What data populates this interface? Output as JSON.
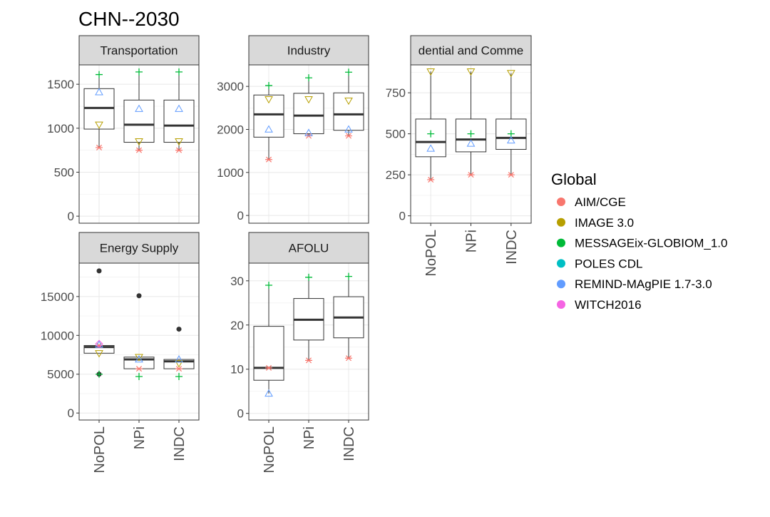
{
  "title": "CHN--2030",
  "legend": {
    "title": "Global",
    "entries": [
      {
        "label": "AIM/CGE",
        "color": "#F8766D"
      },
      {
        "label": "IMAGE 3.0",
        "color": "#B79F00"
      },
      {
        "label": "MESSAGEix-GLOBIOM_1.0",
        "color": "#00BA38"
      },
      {
        "label": "POLES CDL",
        "color": "#00BFC4"
      },
      {
        "label": "REMIND-MAgPIE 1.7-3.0",
        "color": "#619CFF"
      },
      {
        "label": "WITCH2016",
        "color": "#F564E3"
      }
    ]
  },
  "chart_data": [
    {
      "type": "box",
      "panel": "Transportation",
      "categories": [
        "NoPOL",
        "NPi",
        "INDC"
      ],
      "ylim": [
        -80,
        1720
      ],
      "yticks": [
        0,
        500,
        1000,
        1500
      ],
      "boxes": [
        {
          "category": "NoPOL",
          "lower": 780,
          "q1": 990,
          "median": 1230,
          "q3": 1450,
          "upper": 1610
        },
        {
          "category": "NPi",
          "lower": 750,
          "q1": 840,
          "median": 1040,
          "q3": 1320,
          "upper": 1640
        },
        {
          "category": "INDC",
          "lower": 750,
          "q1": 840,
          "median": 1030,
          "q3": 1320,
          "upper": 1640
        }
      ],
      "points": [
        {
          "category": "NoPOL",
          "model": "AIM/CGE",
          "value": 780
        },
        {
          "category": "NoPOL",
          "model": "IMAGE 3.0",
          "value": 1040
        },
        {
          "category": "NoPOL",
          "model": "MESSAGEix-GLOBIOM_1.0",
          "value": 1610
        },
        {
          "category": "NoPOL",
          "model": "REMIND-MAgPIE 1.7-3.0",
          "value": 1410
        },
        {
          "category": "NPi",
          "model": "AIM/CGE",
          "value": 750
        },
        {
          "category": "NPi",
          "model": "IMAGE 3.0",
          "value": 850
        },
        {
          "category": "NPi",
          "model": "MESSAGEix-GLOBIOM_1.0",
          "value": 1640
        },
        {
          "category": "NPi",
          "model": "REMIND-MAgPIE 1.7-3.0",
          "value": 1220
        },
        {
          "category": "INDC",
          "model": "AIM/CGE",
          "value": 750
        },
        {
          "category": "INDC",
          "model": "IMAGE 3.0",
          "value": 850
        },
        {
          "category": "INDC",
          "model": "MESSAGEix-GLOBIOM_1.0",
          "value": 1640
        },
        {
          "category": "INDC",
          "model": "REMIND-MAgPIE 1.7-3.0",
          "value": 1220
        }
      ]
    },
    {
      "type": "box",
      "panel": "Industry",
      "categories": [
        "NoPOL",
        "NPi",
        "INDC"
      ],
      "ylim": [
        -180,
        3500
      ],
      "yticks": [
        0,
        1000,
        2000,
        3000
      ],
      "boxes": [
        {
          "category": "NoPOL",
          "lower": 1300,
          "q1": 1820,
          "median": 2350,
          "q3": 2800,
          "upper": 3020
        },
        {
          "category": "NPi",
          "lower": 1850,
          "q1": 1900,
          "median": 2320,
          "q3": 2840,
          "upper": 3200
        },
        {
          "category": "INDC",
          "lower": 1850,
          "q1": 1980,
          "median": 2350,
          "q3": 2850,
          "upper": 3330
        }
      ],
      "points": [
        {
          "category": "NoPOL",
          "model": "AIM/CGE",
          "value": 1300
        },
        {
          "category": "NoPOL",
          "model": "IMAGE 3.0",
          "value": 2700
        },
        {
          "category": "NoPOL",
          "model": "MESSAGEix-GLOBIOM_1.0",
          "value": 3020
        },
        {
          "category": "NoPOL",
          "model": "REMIND-MAgPIE 1.7-3.0",
          "value": 2000
        },
        {
          "category": "NPi",
          "model": "AIM/CGE",
          "value": 1850
        },
        {
          "category": "NPi",
          "model": "IMAGE 3.0",
          "value": 2700
        },
        {
          "category": "NPi",
          "model": "MESSAGEix-GLOBIOM_1.0",
          "value": 3200
        },
        {
          "category": "NPi",
          "model": "REMIND-MAgPIE 1.7-3.0",
          "value": 1920
        },
        {
          "category": "INDC",
          "model": "AIM/CGE",
          "value": 1850
        },
        {
          "category": "INDC",
          "model": "IMAGE 3.0",
          "value": 2670
        },
        {
          "category": "INDC",
          "model": "MESSAGEix-GLOBIOM_1.0",
          "value": 3330
        },
        {
          "category": "INDC",
          "model": "REMIND-MAgPIE 1.7-3.0",
          "value": 2000
        }
      ]
    },
    {
      "type": "box",
      "panel": "dential and Comme",
      "categories": [
        "NoPOL",
        "NPi",
        "INDC"
      ],
      "ylim": [
        -45,
        920
      ],
      "yticks": [
        0,
        250,
        500,
        750
      ],
      "boxes": [
        {
          "category": "NoPOL",
          "lower": 220,
          "q1": 360,
          "median": 450,
          "q3": 590,
          "upper": 880
        },
        {
          "category": "NPi",
          "lower": 250,
          "q1": 390,
          "median": 465,
          "q3": 590,
          "upper": 880
        },
        {
          "category": "INDC",
          "lower": 250,
          "q1": 405,
          "median": 475,
          "q3": 590,
          "upper": 870
        }
      ],
      "points": [
        {
          "category": "NoPOL",
          "model": "AIM/CGE",
          "value": 220
        },
        {
          "category": "NoPOL",
          "model": "IMAGE 3.0",
          "value": 880
        },
        {
          "category": "NoPOL",
          "model": "MESSAGEix-GLOBIOM_1.0",
          "value": 500
        },
        {
          "category": "NoPOL",
          "model": "REMIND-MAgPIE 1.7-3.0",
          "value": 410
        },
        {
          "category": "NPi",
          "model": "AIM/CGE",
          "value": 250
        },
        {
          "category": "NPi",
          "model": "IMAGE 3.0",
          "value": 880
        },
        {
          "category": "NPi",
          "model": "MESSAGEix-GLOBIOM_1.0",
          "value": 500
        },
        {
          "category": "NPi",
          "model": "REMIND-MAgPIE 1.7-3.0",
          "value": 440
        },
        {
          "category": "INDC",
          "model": "AIM/CGE",
          "value": 250
        },
        {
          "category": "INDC",
          "model": "IMAGE 3.0",
          "value": 870
        },
        {
          "category": "INDC",
          "model": "MESSAGEix-GLOBIOM_1.0",
          "value": 500
        },
        {
          "category": "INDC",
          "model": "REMIND-MAgPIE 1.7-3.0",
          "value": 460
        }
      ]
    },
    {
      "type": "box",
      "panel": "Energy Supply",
      "categories": [
        "NoPOL",
        "NPi",
        "INDC"
      ],
      "ylim": [
        -900,
        19300
      ],
      "yticks": [
        0,
        5000,
        10000,
        15000
      ],
      "boxes": [
        {
          "category": "NoPOL",
          "lower": 7700,
          "q1": 7700,
          "median": 8500,
          "q3": 8700,
          "upper": 8800
        },
        {
          "category": "NPi",
          "lower": 5700,
          "q1": 5700,
          "median": 6900,
          "q3": 7200,
          "upper": 7200
        },
        {
          "category": "INDC",
          "lower": 5700,
          "q1": 5700,
          "median": 6650,
          "q3": 6900,
          "upper": 6900
        }
      ],
      "points": [
        {
          "category": "NoPOL",
          "model": "AIM/CGE",
          "value": 8700
        },
        {
          "category": "NoPOL",
          "model": "IMAGE 3.0",
          "value": 7700
        },
        {
          "category": "NoPOL",
          "model": "MESSAGEix-GLOBIOM_1.0",
          "value": 5000
        },
        {
          "category": "NoPOL",
          "model": "REMIND-MAgPIE 1.7-3.0",
          "value": 8800
        },
        {
          "category": "NoPOL",
          "model": "WITCH2016",
          "value": 8900
        },
        {
          "category": "NPi",
          "model": "AIM/CGE",
          "value": 5700
        },
        {
          "category": "NPi",
          "model": "IMAGE 3.0",
          "value": 7200
        },
        {
          "category": "NPi",
          "model": "MESSAGEix-GLOBIOM_1.0",
          "value": 4700
        },
        {
          "category": "NPi",
          "model": "REMIND-MAgPIE 1.7-3.0",
          "value": 6900
        },
        {
          "category": "INDC",
          "model": "AIM/CGE",
          "value": 5700
        },
        {
          "category": "INDC",
          "model": "IMAGE 3.0",
          "value": 6400
        },
        {
          "category": "INDC",
          "model": "MESSAGEix-GLOBIOM_1.0",
          "value": 4700
        },
        {
          "category": "INDC",
          "model": "REMIND-MAgPIE 1.7-3.0",
          "value": 6900
        }
      ],
      "outliers": [
        {
          "category": "NoPOL",
          "value": 18300
        },
        {
          "category": "NoPOL",
          "value": 5000
        },
        {
          "category": "NPi",
          "value": 15100
        },
        {
          "category": "INDC",
          "value": 10800
        }
      ]
    },
    {
      "type": "box",
      "panel": "AFOLU",
      "categories": [
        "NoPOL",
        "NPi",
        "INDC"
      ],
      "ylim": [
        -1.5,
        34
      ],
      "yticks": [
        0,
        10,
        20,
        30
      ],
      "boxes": [
        {
          "category": "NoPOL",
          "lower": 4.5,
          "q1": 7.5,
          "median": 10.3,
          "q3": 19.7,
          "upper": 29
        },
        {
          "category": "NPi",
          "lower": 12,
          "q1": 16.6,
          "median": 21.2,
          "q3": 26,
          "upper": 30.8
        },
        {
          "category": "INDC",
          "lower": 12.5,
          "q1": 17.1,
          "median": 21.7,
          "q3": 26.4,
          "upper": 31
        }
      ],
      "points": [
        {
          "category": "NoPOL",
          "model": "AIM/CGE",
          "value": 10.3
        },
        {
          "category": "NoPOL",
          "model": "MESSAGEix-GLOBIOM_1.0",
          "value": 29
        },
        {
          "category": "NoPOL",
          "model": "REMIND-MAgPIE 1.7-3.0",
          "value": 4.5
        },
        {
          "category": "NPi",
          "model": "AIM/CGE",
          "value": 12
        },
        {
          "category": "NPi",
          "model": "MESSAGEix-GLOBIOM_1.0",
          "value": 30.8
        },
        {
          "category": "INDC",
          "model": "AIM/CGE",
          "value": 12.5
        },
        {
          "category": "INDC",
          "model": "MESSAGEix-GLOBIOM_1.0",
          "value": 31
        }
      ]
    }
  ]
}
